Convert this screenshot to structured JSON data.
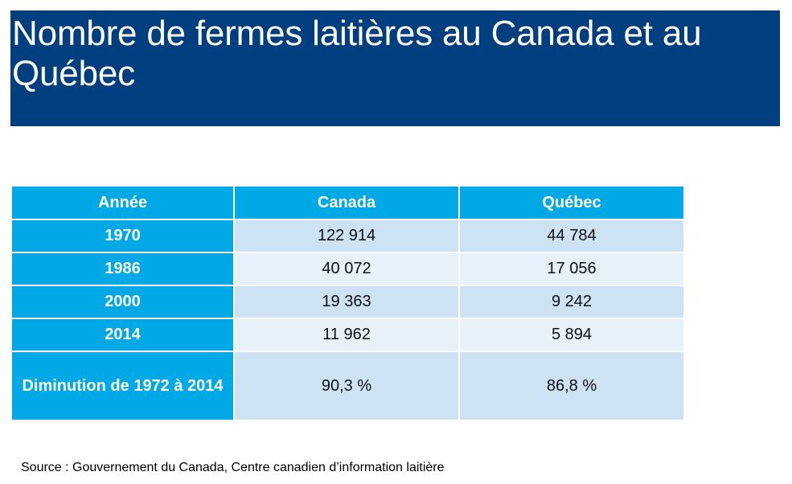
{
  "title": "Nombre de fermes laitières au Canada et au Québec",
  "table": {
    "headers": [
      "Année",
      "Canada",
      "Québec"
    ],
    "rows": [
      {
        "label": "1970",
        "canada": "122 914",
        "quebec": "44 784"
      },
      {
        "label": "1986",
        "canada": "40 072",
        "quebec": "17 056"
      },
      {
        "label": "2000",
        "canada": "19 363",
        "quebec": "9 242"
      },
      {
        "label": "2014",
        "canada": "11 962",
        "quebec": "5 894"
      },
      {
        "label": "Diminution de 1972 à 2014",
        "canada": "90,3 %",
        "quebec": "86,8 %"
      }
    ]
  },
  "source": "Source : Gouvernement du Canada, Centre canadien d’information laitière",
  "colors": {
    "title_background": "#003f7f",
    "header_background": "#00a9e6",
    "row_shade_dark": "#cde2f3",
    "row_shade_light": "#e7f1fa"
  }
}
